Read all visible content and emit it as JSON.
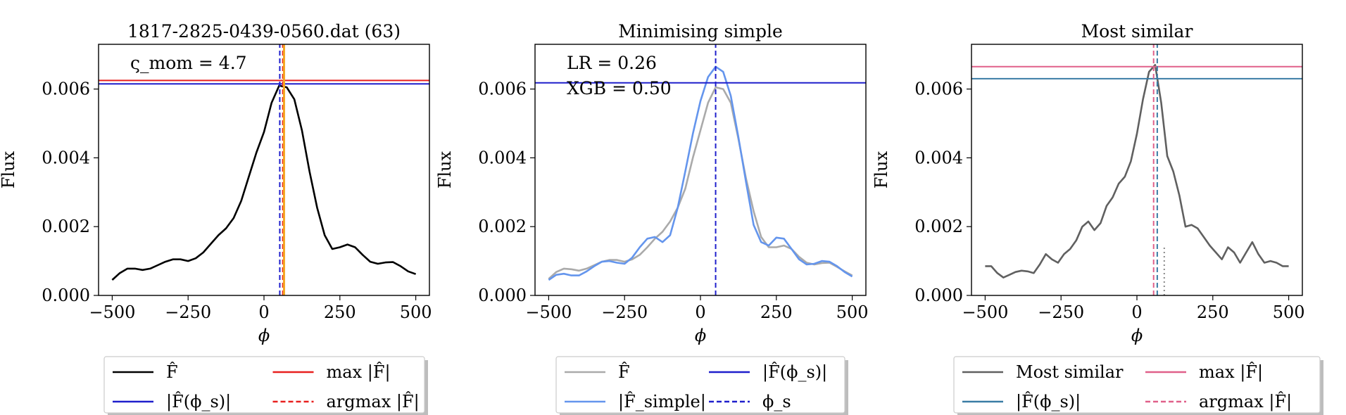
{
  "chart_data": [
    {
      "type": "line",
      "title": "1817-2825-0439-0560.dat (63)",
      "xlabel": "ϕ",
      "ylabel": "Flux",
      "xlim": [
        -545,
        545
      ],
      "ylim": [
        0.0,
        0.0073
      ],
      "xticks": [
        -500,
        -250,
        0,
        250,
        500
      ],
      "xtick_labels": [
        "−500",
        "−250",
        "0",
        "250",
        "500"
      ],
      "yticks": [
        0.0,
        0.002,
        0.004,
        0.006
      ],
      "ytick_labels": [
        "0.000",
        "0.002",
        "0.004",
        "0.006"
      ],
      "annotations": [
        "ς_mom = 4.7"
      ],
      "hlines": [
        {
          "y": 0.00625,
          "color": "#e8201f"
        },
        {
          "y": 0.00615,
          "color": "#1f1fcc"
        }
      ],
      "vlines": [
        {
          "x": 52,
          "color": "#1f1fcc",
          "style": "dashed"
        },
        {
          "x": 62,
          "color": "#e8201f",
          "style": "dashed"
        },
        {
          "x": 66,
          "color": "#f5a623",
          "style": "solid"
        }
      ],
      "series": [
        {
          "color": "#000000",
          "x": [
            -500,
            -475,
            -450,
            -425,
            -400,
            -375,
            -350,
            -325,
            -300,
            -275,
            -250,
            -225,
            -200,
            -175,
            -150,
            -125,
            -100,
            -75,
            -50,
            -25,
            0,
            25,
            50,
            75,
            100,
            125,
            150,
            175,
            200,
            225,
            250,
            275,
            300,
            325,
            350,
            375,
            400,
            425,
            450,
            475,
            500
          ],
          "values": [
            0.00045,
            0.00065,
            0.00078,
            0.00078,
            0.00074,
            0.00078,
            0.00088,
            0.00098,
            0.00105,
            0.00105,
            0.001,
            0.00108,
            0.00125,
            0.0015,
            0.00175,
            0.00195,
            0.00225,
            0.00275,
            0.00345,
            0.00415,
            0.00475,
            0.0056,
            0.0061,
            0.00605,
            0.0057,
            0.0048,
            0.0036,
            0.00255,
            0.00175,
            0.00135,
            0.0014,
            0.00148,
            0.0014,
            0.00118,
            0.00098,
            0.00092,
            0.00096,
            0.00097,
            0.00085,
            0.0007,
            0.00062
          ]
        }
      ],
      "legend": {
        "position": "below",
        "entries": [
          {
            "label": "F̂",
            "color": "#000000",
            "style": "solid"
          },
          {
            "label": "max |F̂|",
            "color": "#e8201f",
            "style": "solid"
          },
          {
            "label": "|F̂(ϕ_s)|",
            "color": "#1f1fcc",
            "style": "solid"
          },
          {
            "label": "argmax |F̂|",
            "color": "#e8201f",
            "style": "dashed"
          }
        ]
      }
    },
    {
      "type": "line",
      "title": "Minimising simple",
      "xlabel": "ϕ",
      "ylabel": "Flux",
      "xlim": [
        -545,
        545
      ],
      "ylim": [
        0.0,
        0.0073
      ],
      "xticks": [
        -500,
        -250,
        0,
        250,
        500
      ],
      "xtick_labels": [
        "−500",
        "−250",
        "0",
        "250",
        "500"
      ],
      "yticks": [
        0.0,
        0.002,
        0.004,
        0.006
      ],
      "ytick_labels": [
        "0.000",
        "0.002",
        "0.004",
        "0.006"
      ],
      "annotations": [
        "LR = 0.26",
        "XGB = 0.50"
      ],
      "hlines": [
        {
          "y": 0.00618,
          "color": "#1f1fcc"
        }
      ],
      "vlines": [
        {
          "x": 50,
          "color": "#1f1fcc",
          "style": "dashed"
        }
      ],
      "series": [
        {
          "color": "#aaaaaa",
          "x": [
            -500,
            -475,
            -450,
            -425,
            -400,
            -375,
            -350,
            -325,
            -300,
            -275,
            -250,
            -225,
            -200,
            -175,
            -150,
            -125,
            -100,
            -75,
            -50,
            -25,
            0,
            25,
            50,
            75,
            100,
            125,
            150,
            175,
            200,
            225,
            250,
            275,
            300,
            325,
            350,
            375,
            400,
            425,
            450,
            475,
            500
          ],
          "values": [
            0.00048,
            0.00068,
            0.00078,
            0.00076,
            0.00072,
            0.00078,
            0.00088,
            0.00098,
            0.00103,
            0.00103,
            0.00098,
            0.00105,
            0.00118,
            0.0014,
            0.00165,
            0.00185,
            0.00215,
            0.00255,
            0.0031,
            0.004,
            0.0048,
            0.0056,
            0.00605,
            0.006,
            0.0056,
            0.00455,
            0.0034,
            0.00245,
            0.0017,
            0.0014,
            0.0014,
            0.00145,
            0.00135,
            0.00112,
            0.00095,
            0.0009,
            0.00094,
            0.00095,
            0.00083,
            0.0007,
            0.00058
          ]
        },
        {
          "color": "#6495ed",
          "x": [
            -500,
            -475,
            -450,
            -425,
            -400,
            -375,
            -350,
            -325,
            -300,
            -275,
            -250,
            -225,
            -200,
            -175,
            -150,
            -125,
            -100,
            -75,
            -50,
            -25,
            0,
            25,
            50,
            75,
            100,
            125,
            150,
            175,
            200,
            225,
            250,
            275,
            300,
            325,
            350,
            375,
            400,
            425,
            450,
            475,
            500
          ],
          "values": [
            0.00045,
            0.0006,
            0.00063,
            0.00058,
            0.00058,
            0.0007,
            0.00085,
            0.00098,
            0.001,
            0.00095,
            0.00092,
            0.0011,
            0.0014,
            0.00165,
            0.0017,
            0.00155,
            0.00175,
            0.00255,
            0.0036,
            0.0047,
            0.00565,
            0.00635,
            0.00665,
            0.0065,
            0.0058,
            0.0046,
            0.0033,
            0.00205,
            0.00155,
            0.00145,
            0.00168,
            0.00165,
            0.00135,
            0.00105,
            0.0009,
            0.00092,
            0.001,
            0.00098,
            0.00085,
            0.00068,
            0.00055
          ]
        }
      ],
      "legend": {
        "position": "below",
        "entries": [
          {
            "label": "F̂",
            "color": "#aaaaaa",
            "style": "solid"
          },
          {
            "label": "|F̂(ϕ_s)|",
            "color": "#1f1fcc",
            "style": "solid"
          },
          {
            "label": "|F̂_simple|",
            "color": "#6495ed",
            "style": "solid"
          },
          {
            "label": "ϕ_s",
            "color": "#1f1fcc",
            "style": "dashed"
          }
        ]
      }
    },
    {
      "type": "line",
      "title": "Most similar",
      "xlabel": "ϕ",
      "ylabel": "Flux",
      "xlim": [
        -545,
        545
      ],
      "ylim": [
        0.0,
        0.0073
      ],
      "xticks": [
        -500,
        -250,
        0,
        250,
        500
      ],
      "xtick_labels": [
        "−500",
        "−250",
        "0",
        "250",
        "500"
      ],
      "yticks": [
        0.0,
        0.002,
        0.004,
        0.006
      ],
      "ytick_labels": [
        "0.000",
        "0.002",
        "0.004",
        "0.006"
      ],
      "annotations": [],
      "hlines": [
        {
          "y": 0.00665,
          "color": "#e0608a"
        },
        {
          "y": 0.0063,
          "color": "#3a7ca5"
        }
      ],
      "vlines": [
        {
          "x": 55,
          "color": "#e0608a",
          "style": "dashed"
        },
        {
          "x": 67,
          "color": "#3a7ca5",
          "style": "dashed"
        },
        {
          "x": 90,
          "color": "#888888",
          "style": "dotted",
          "ymax": 0.00145
        }
      ],
      "series": [
        {
          "color": "#606060",
          "x": [
            -500,
            -480,
            -460,
            -440,
            -420,
            -400,
            -380,
            -360,
            -340,
            -320,
            -300,
            -280,
            -260,
            -240,
            -220,
            -200,
            -180,
            -160,
            -140,
            -120,
            -100,
            -80,
            -60,
            -40,
            -20,
            0,
            20,
            40,
            60,
            80,
            100,
            120,
            140,
            160,
            180,
            200,
            220,
            240,
            260,
            280,
            300,
            320,
            340,
            360,
            380,
            400,
            420,
            440,
            460,
            480,
            500
          ],
          "values": [
            0.00085,
            0.00085,
            0.00065,
            0.00052,
            0.0006,
            0.00068,
            0.00072,
            0.0007,
            0.00065,
            0.0009,
            0.0012,
            0.00105,
            0.00095,
            0.0012,
            0.00135,
            0.0016,
            0.002,
            0.00215,
            0.0019,
            0.0021,
            0.0026,
            0.00285,
            0.00325,
            0.00345,
            0.0039,
            0.0047,
            0.0057,
            0.0065,
            0.0067,
            0.0056,
            0.00405,
            0.0036,
            0.0029,
            0.002,
            0.00205,
            0.00195,
            0.0017,
            0.00145,
            0.00125,
            0.00105,
            0.0014,
            0.00125,
            0.00095,
            0.00125,
            0.00155,
            0.0012,
            0.00095,
            0.001,
            0.00095,
            0.00085,
            0.00085
          ]
        }
      ],
      "legend": {
        "position": "below",
        "entries": [
          {
            "label": "Most similar",
            "color": "#606060",
            "style": "solid"
          },
          {
            "label": "max |F̂|",
            "color": "#e0608a",
            "style": "solid"
          },
          {
            "label": "|F̂(ϕ_s)|",
            "color": "#3a7ca5",
            "style": "solid"
          },
          {
            "label": "argmax |F̂|",
            "color": "#e0608a",
            "style": "dashed"
          }
        ]
      }
    }
  ]
}
